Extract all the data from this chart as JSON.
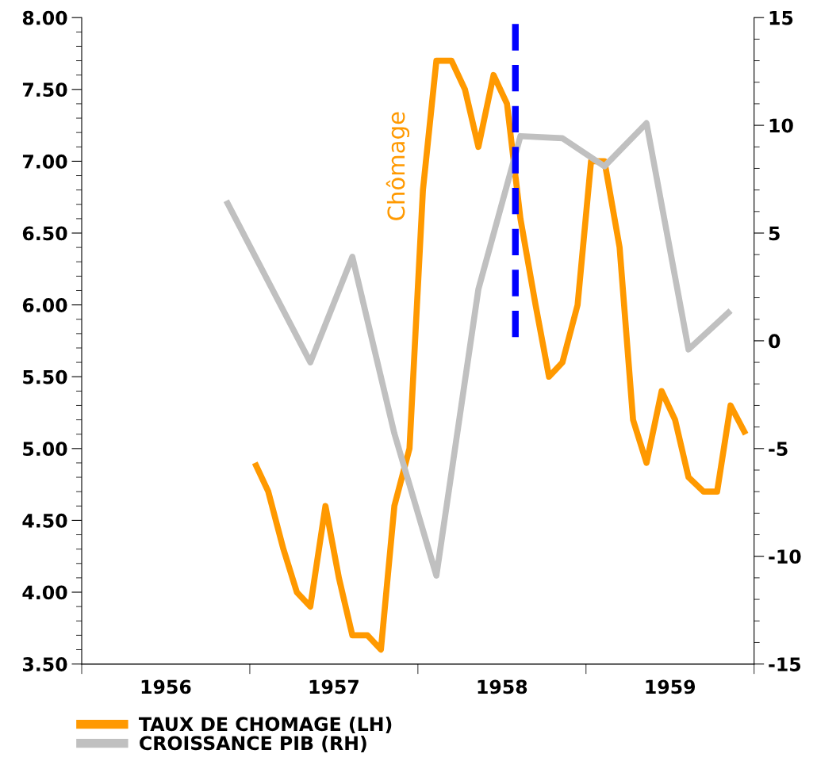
{
  "chart_data": {
    "type": "line",
    "series": [
      {
        "name": "TAUX DE CHOMAGE (LH)",
        "color": "#ff9900",
        "x": [
          1957.03,
          1957.11,
          1957.2,
          1957.28,
          1957.36,
          1957.45,
          1957.53,
          1957.61,
          1957.7,
          1957.78,
          1957.86,
          1957.95,
          1958.03,
          1958.11,
          1958.2,
          1958.28,
          1958.36,
          1958.45,
          1958.53,
          1958.61,
          1958.7,
          1958.78,
          1958.86,
          1958.95,
          1959.03,
          1959.11,
          1959.2,
          1959.28,
          1959.36,
          1959.45,
          1959.53,
          1959.61,
          1959.7,
          1959.78,
          1959.86,
          1959.95
        ],
        "values": [
          4.9,
          4.7,
          4.3,
          4.0,
          3.9,
          4.6,
          4.1,
          3.7,
          3.7,
          3.6,
          4.6,
          5.0,
          6.8,
          7.7,
          7.7,
          7.5,
          7.1,
          7.6,
          7.4,
          6.6,
          6.0,
          5.5,
          5.6,
          6.0,
          7.0,
          7.0,
          6.4,
          5.2,
          4.9,
          5.4,
          5.2,
          4.8,
          4.7,
          4.7,
          5.3,
          5.1
        ]
      },
      {
        "name": "CROISSANCE PIB (RH)",
        "color": "#c0c0c0",
        "axis": "y2",
        "x": [
          1956.86,
          1957.12,
          1957.36,
          1957.61,
          1957.86,
          1958.11,
          1958.36,
          1958.61,
          1958.86,
          1959.11,
          1959.36,
          1959.61,
          1959.86
        ],
        "values": [
          6.5,
          2.6,
          -1.0,
          3.9,
          -4.3,
          -10.9,
          2.4,
          9.5,
          9.4,
          8.1,
          10.1,
          -0.4,
          1.4
        ]
      },
      {
        "color": "#0000ff",
        "axis": "y2",
        "line_style": "dashed",
        "x": [
          1958.58,
          1958.58
        ],
        "values": [
          14.7,
          0
        ]
      }
    ],
    "annotations": [
      "Chômage"
    ],
    "xlim": [
      1956,
      1960
    ],
    "xticks": [
      {
        "value": 1956,
        "label": null
      },
      {
        "value": 1956.5,
        "label": "1956"
      },
      {
        "value": 1957,
        "label": null
      },
      {
        "value": 1957.5,
        "label": "1957"
      },
      {
        "value": 1958,
        "label": null
      },
      {
        "value": 1958.5,
        "label": "1958"
      },
      {
        "value": 1959,
        "label": null
      },
      {
        "value": 1959.5,
        "label": "1959"
      },
      {
        "value": 1960,
        "label": null
      }
    ],
    "ylim": [
      3.5,
      8.0
    ],
    "yticks": [
      {
        "value": 3.5,
        "label": "3.50"
      },
      {
        "value": 3.6,
        "label": null
      },
      {
        "value": 3.7,
        "label": null
      },
      {
        "value": 3.8,
        "label": null
      },
      {
        "value": 3.9,
        "label": null
      },
      {
        "value": 4.0,
        "label": "4.00"
      },
      {
        "value": 4.1,
        "label": null
      },
      {
        "value": 4.2,
        "label": null
      },
      {
        "value": 4.3,
        "label": null
      },
      {
        "value": 4.4,
        "label": null
      },
      {
        "value": 4.5,
        "label": "4.50"
      },
      {
        "value": 4.6,
        "label": null
      },
      {
        "value": 4.7,
        "label": null
      },
      {
        "value": 4.8,
        "label": null
      },
      {
        "value": 4.9,
        "label": null
      },
      {
        "value": 5.0,
        "label": "5.00"
      },
      {
        "value": 5.1,
        "label": null
      },
      {
        "value": 5.2,
        "label": null
      },
      {
        "value": 5.3,
        "label": null
      },
      {
        "value": 5.4,
        "label": null
      },
      {
        "value": 5.5,
        "label": "5.50"
      },
      {
        "value": 5.6,
        "label": null
      },
      {
        "value": 5.7,
        "label": null
      },
      {
        "value": 5.8,
        "label": null
      },
      {
        "value": 5.9,
        "label": null
      },
      {
        "value": 6.0,
        "label": "6.00"
      },
      {
        "value": 6.1,
        "label": null
      },
      {
        "value": 6.2,
        "label": null
      },
      {
        "value": 6.3,
        "label": null
      },
      {
        "value": 6.4,
        "label": null
      },
      {
        "value": 6.5,
        "label": "6.50"
      },
      {
        "value": 6.6,
        "label": null
      },
      {
        "value": 6.7,
        "label": null
      },
      {
        "value": 6.8,
        "label": null
      },
      {
        "value": 6.9,
        "label": null
      },
      {
        "value": 7.0,
        "label": "7.00"
      },
      {
        "value": 7.1,
        "label": null
      },
      {
        "value": 7.2,
        "label": null
      },
      {
        "value": 7.3,
        "label": null
      },
      {
        "value": 7.4,
        "label": null
      },
      {
        "value": 7.5,
        "label": "7.50"
      },
      {
        "value": 7.6,
        "label": null
      },
      {
        "value": 7.7,
        "label": null
      },
      {
        "value": 7.8,
        "label": null
      },
      {
        "value": 7.9,
        "label": null
      },
      {
        "value": 8.0,
        "label": "8.00"
      }
    ],
    "y2lim": [
      -15,
      15
    ],
    "y2ticks": [
      -15,
      {
        "value": -14,
        "label": null
      },
      {
        "value": -13,
        "label": null
      },
      {
        "value": -12,
        "label": null
      },
      {
        "value": -11,
        "label": null
      },
      -10,
      {
        "value": -9,
        "label": null
      },
      {
        "value": -8,
        "label": null
      },
      {
        "value": -7,
        "label": null
      },
      {
        "value": -6,
        "label": null
      },
      -5,
      {
        "value": -4,
        "label": null
      },
      {
        "value": -3,
        "label": null
      },
      {
        "value": -2,
        "label": null
      },
      {
        "value": -1,
        "label": null
      },
      0,
      {
        "value": 1,
        "label": null
      },
      {
        "value": 2,
        "label": null
      },
      {
        "value": 3,
        "label": null
      },
      {
        "value": 4,
        "label": null
      },
      5,
      {
        "value": 6,
        "label": null
      },
      {
        "value": 7,
        "label": null
      },
      {
        "value": 8,
        "label": null
      },
      {
        "value": 9,
        "label": null
      },
      10,
      {
        "value": 11,
        "label": null
      },
      {
        "value": 12,
        "label": null
      },
      {
        "value": 13,
        "label": null
      },
      {
        "value": 14,
        "label": null
      },
      15
    ],
    "grid": false,
    "legend": "bottom left"
  }
}
